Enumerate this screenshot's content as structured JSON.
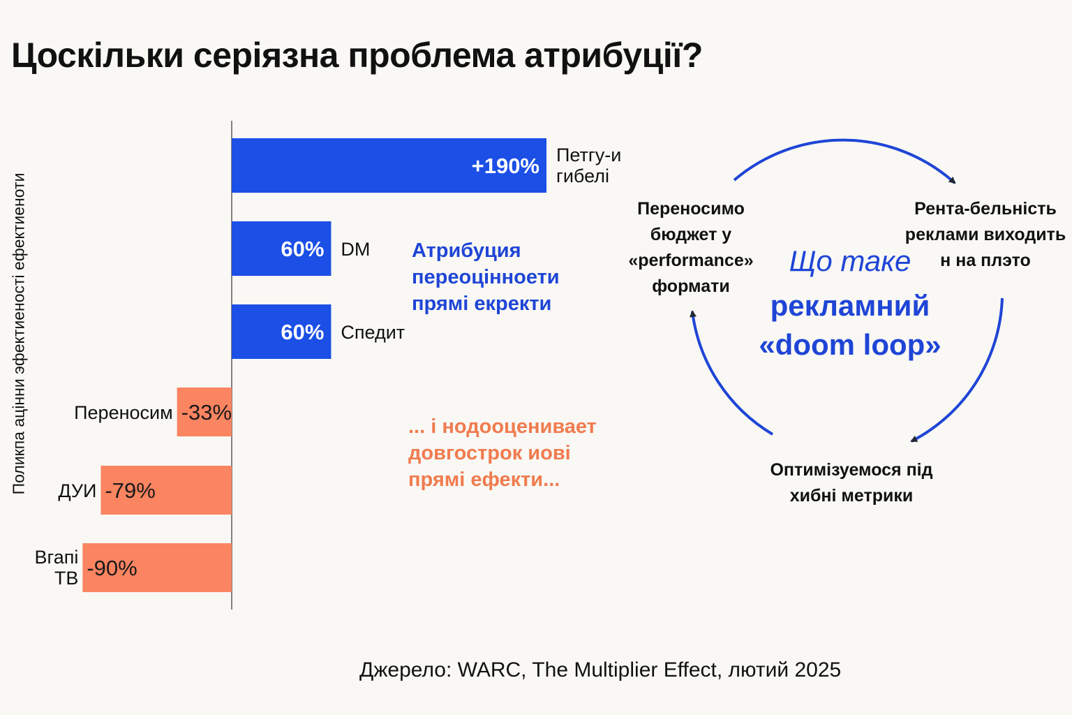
{
  "title": "Цоскільки серіязна проблема атрибуції?",
  "source": "Джерело: WARC, The Multiplier Effect, лютий 2025",
  "colors": {
    "positive": "#1b4fe6",
    "negative": "#fb8461",
    "blue_text": "#1f45d6",
    "orange_text": "#f07b4f",
    "dark_arrow": "#222a35"
  },
  "chart_data": {
    "type": "bar",
    "orientation": "horizontal",
    "title": "",
    "ylabel": "Поликпа ацінни эфектиеності ефектиеноти",
    "categories": [
      "Петгу-и гибелі",
      "DM",
      "Спедит",
      "Переносим",
      "ДУИ",
      "Вгапі ТВ"
    ],
    "values": [
      190,
      60,
      60,
      -33,
      -79,
      -90
    ],
    "data_labels": [
      "+190%",
      "60%",
      "60%",
      "-33%",
      "-79%",
      "-90%"
    ],
    "xlim": [
      -90,
      190
    ],
    "grid": false
  },
  "annotations": {
    "overvalue": "Атрибуция переоціннoети прямі екректи",
    "undervalue": "... і нодооценивает довгострок иові прямі ефекти..."
  },
  "loop": {
    "center_sub": "Що таке",
    "center_main": "рекламний «doom loop»",
    "step_a": "Переносимо бюджет у «performance» формати",
    "step_b": "Рента-бельність реклами виходить н на плэто",
    "step_c": "Оптимізуемося під хибні метрики"
  }
}
